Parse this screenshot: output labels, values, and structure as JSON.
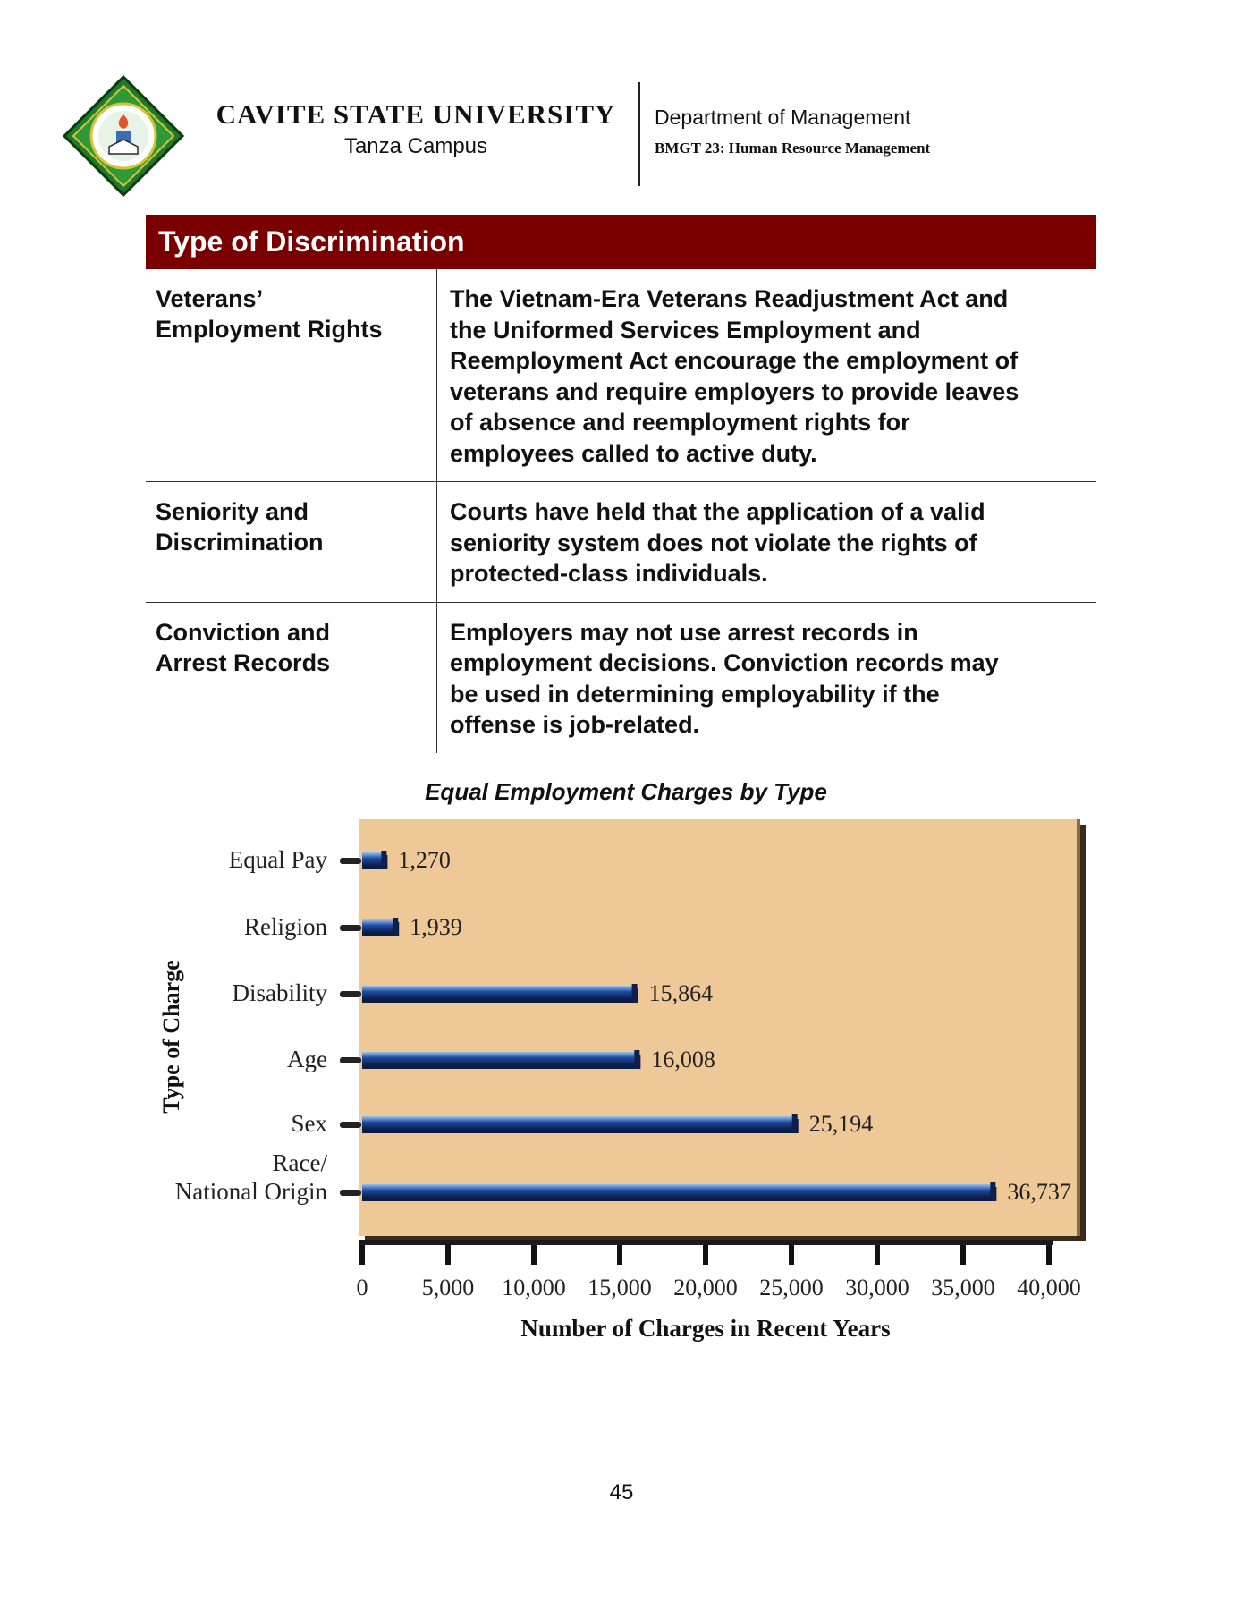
{
  "header": {
    "university": "CAVITE STATE UNIVERSITY",
    "campus": "Tanza Campus",
    "department": "Department of Management",
    "course": "BMGT 23: Human Resource Management"
  },
  "table": {
    "header": "Type of Discrimination",
    "rows": [
      {
        "term_lines": [
          "Veterans’",
          "Employment Rights"
        ],
        "desc_lines": [
          "The Vietnam-Era Veterans Readjustment Act and",
          "the Uniformed Services Employment and",
          "Reemployment Act encourage the employment of",
          "veterans and require employers to provide leaves",
          "of absence and reemployment rights for",
          "employees called to active duty."
        ]
      },
      {
        "term_lines": [
          "Seniority and",
          "Discrimination"
        ],
        "desc_lines": [
          "Courts have held that the application of a valid",
          "seniority system does not violate the rights of",
          "protected-class individuals."
        ]
      },
      {
        "term_lines": [
          "Conviction and",
          "Arrest Records"
        ],
        "desc_lines": [
          "Employers may not use arrest records in",
          "employment decisions. Conviction records may",
          "be used in determining employability if the",
          "offense is job-related."
        ]
      }
    ]
  },
  "chart_data": {
    "type": "bar",
    "orientation": "horizontal",
    "title": "Equal Employment Charges by Type",
    "xlabel": "Number of Charges in Recent Years",
    "ylabel": "Type of Charge",
    "categories": [
      "Equal Pay",
      "Religion",
      "Disability",
      "Age",
      "Sex",
      "Race/ National Origin"
    ],
    "category_lines": [
      [
        "Equal Pay"
      ],
      [
        "Religion"
      ],
      [
        "Disability"
      ],
      [
        "Age"
      ],
      [
        "Sex"
      ],
      [
        "Race/",
        "National Origin"
      ]
    ],
    "values": [
      1270,
      1939,
      15864,
      16008,
      25194,
      36737
    ],
    "value_labels": [
      "1,270",
      "1,939",
      "15,864",
      "16,008",
      "25,194",
      "36,737"
    ],
    "xlim": [
      0,
      40000
    ],
    "xticks": [
      0,
      5000,
      10000,
      15000,
      20000,
      25000,
      30000,
      35000,
      40000
    ],
    "xtick_labels": [
      "0",
      "5,000",
      "10,000",
      "15,000",
      "20,000",
      "25,000",
      "30,000",
      "35,000",
      "40,000"
    ],
    "grid": false,
    "colors": {
      "plot_background": "#efc897",
      "bar": "#1d4aa0",
      "bar_highlight": "#9cc3ee",
      "bar_shadow": "#0a1d45"
    }
  },
  "page": {
    "number": "45"
  }
}
